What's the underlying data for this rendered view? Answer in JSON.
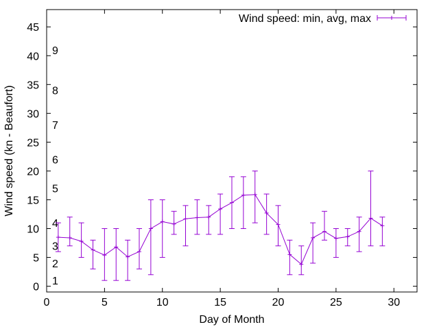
{
  "chart_data": {
    "type": "line",
    "xlabel": "Day of Month",
    "ylabel": "Wind speed (kn - Beaufort)",
    "xlim": [
      0,
      32
    ],
    "ylim": [
      -1,
      48
    ],
    "xticks": [
      0,
      5,
      10,
      15,
      20,
      25,
      30
    ],
    "yticks": [
      0,
      5,
      10,
      15,
      20,
      25,
      30,
      35,
      40,
      45
    ],
    "beaufort_labels": [
      {
        "label": "1",
        "y": 1
      },
      {
        "label": "2",
        "y": 4
      },
      {
        "label": "3",
        "y": 7
      },
      {
        "label": "4",
        "y": 11
      },
      {
        "label": "5",
        "y": 17
      },
      {
        "label": "6",
        "y": 22
      },
      {
        "label": "7",
        "y": 28
      },
      {
        "label": "8",
        "y": 34
      },
      {
        "label": "9",
        "y": 41
      }
    ],
    "grid": false,
    "legend_position": "top-right",
    "color": "#9400d3",
    "series": [
      {
        "name": "Wind speed: min, avg, max",
        "x": [
          1,
          2,
          3,
          4,
          5,
          6,
          7,
          8,
          9,
          10,
          11,
          12,
          13,
          14,
          15,
          16,
          17,
          18,
          19,
          20,
          21,
          22,
          23,
          24,
          25,
          26,
          27,
          28,
          29
        ],
        "avg": [
          8.5,
          8.4,
          7.8,
          6.3,
          5.4,
          6.8,
          5.1,
          6.0,
          10.0,
          11.2,
          10.8,
          11.7,
          11.9,
          12.0,
          13.4,
          14.5,
          15.8,
          15.9,
          12.7,
          10.7,
          5.5,
          3.8,
          8.4,
          9.5,
          8.3,
          8.6,
          9.5,
          11.8,
          10.5
        ],
        "min": [
          6,
          7,
          5,
          3,
          1,
          1,
          1,
          3,
          2,
          5,
          9,
          7,
          9,
          9,
          9,
          10,
          10,
          11,
          9,
          7,
          2,
          2,
          4,
          8,
          5,
          7,
          6,
          7,
          7
        ],
        "max": [
          11,
          12,
          11,
          8,
          10,
          10,
          8,
          10,
          15,
          15,
          13,
          14,
          15,
          14,
          16,
          19,
          19,
          20,
          16,
          14,
          8,
          7,
          11,
          13,
          10,
          10,
          12,
          20,
          12
        ]
      }
    ]
  }
}
